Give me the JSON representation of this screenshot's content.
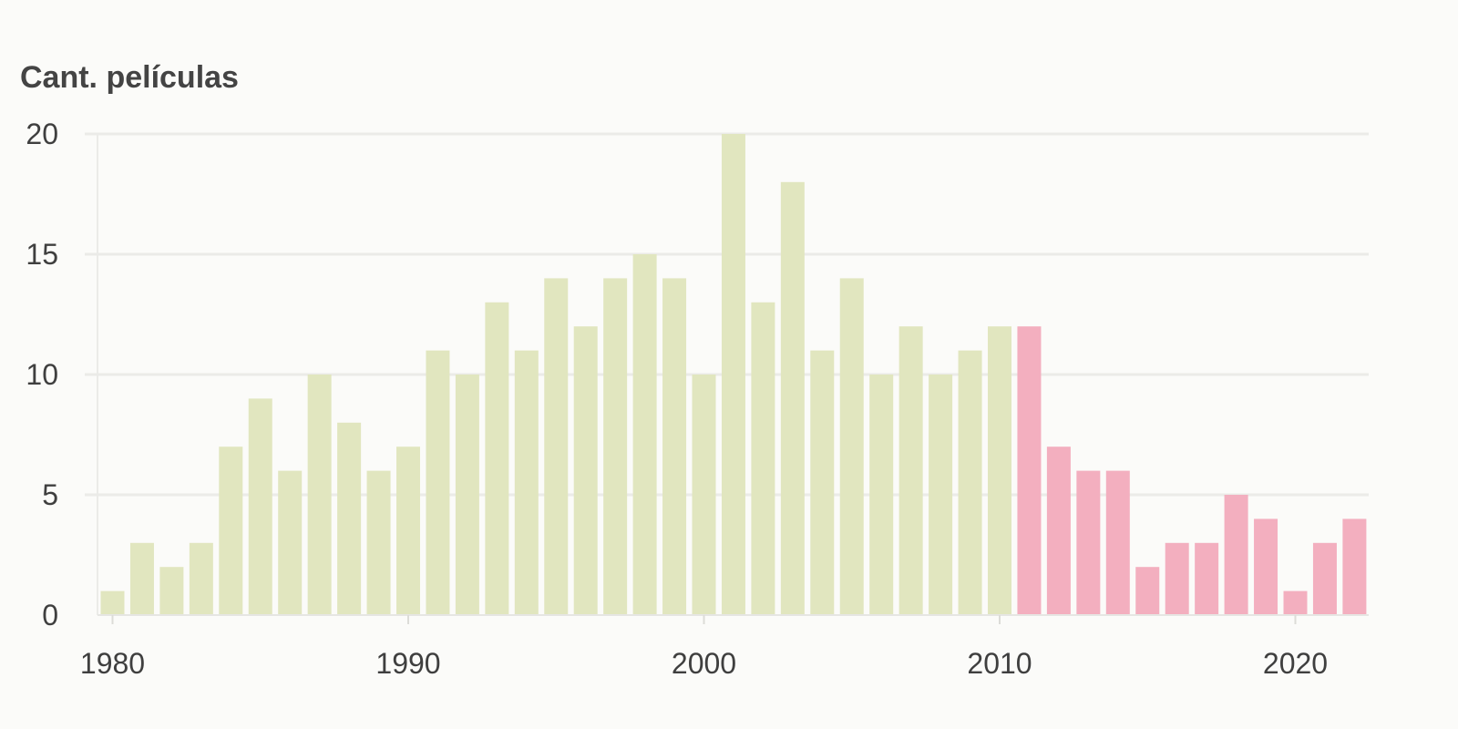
{
  "chart_data": {
    "type": "bar",
    "title": "",
    "xlabel": "",
    "ylabel": "Cant. películas",
    "x": [
      1980,
      1981,
      1982,
      1983,
      1984,
      1985,
      1986,
      1987,
      1988,
      1989,
      1990,
      1991,
      1992,
      1993,
      1994,
      1995,
      1996,
      1997,
      1998,
      1999,
      2000,
      2001,
      2002,
      2003,
      2004,
      2005,
      2006,
      2007,
      2008,
      2009,
      2010,
      2011,
      2012,
      2013,
      2014,
      2015,
      2016,
      2017,
      2018,
      2019,
      2020,
      2021,
      2022
    ],
    "values": [
      1,
      3,
      2,
      3,
      7,
      9,
      6,
      10,
      8,
      6,
      7,
      11,
      10,
      13,
      11,
      14,
      12,
      14,
      15,
      14,
      10,
      20,
      13,
      18,
      11,
      14,
      10,
      12,
      10,
      11,
      12,
      12,
      7,
      6,
      6,
      2,
      3,
      3,
      5,
      4,
      1,
      3,
      4
    ],
    "highlight_from": 2011,
    "colors": {
      "base": "#e1e6bf",
      "highlight": "#f3afbf"
    },
    "ylim": [
      0,
      20
    ],
    "yticks": [
      0,
      5,
      10,
      15,
      20
    ],
    "xticks": [
      1980,
      1990,
      2000,
      2010,
      2020
    ],
    "grid": true,
    "legend": "none"
  }
}
